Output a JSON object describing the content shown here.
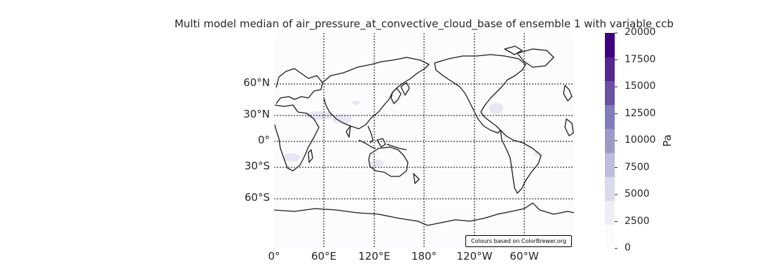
{
  "map": {
    "title": "Multi model median of air_pressure_at_convective_cloud_base of ensemble 1 with variable ccb",
    "projection": "Plate Carree, central longitude 180",
    "ocean_fill": "#fcfbfd",
    "coastline_color": "#1a1a1a",
    "gridline_color": "#000000",
    "lat_labels": [
      "60°N",
      "30°N",
      "0°",
      "30°S",
      "60°S"
    ],
    "lon_labels": [
      "0°",
      "60°E",
      "120°E",
      "180°",
      "120°W",
      "60°W"
    ],
    "credit": "Colours based on ColorBrewer.org"
  },
  "colorbar": {
    "unit": "Pa",
    "colormap": "Purples",
    "ticks": [
      "0",
      "2500",
      "5000",
      "7500",
      "10000",
      "12500",
      "15000",
      "17500",
      "20000"
    ],
    "bin_colors": [
      "#fcfbfd",
      "#efedf5",
      "#dadaeb",
      "#bcbddc",
      "#9e9ac8",
      "#807dba",
      "#6a51a3",
      "#54278f",
      "#3f007d"
    ]
  }
}
